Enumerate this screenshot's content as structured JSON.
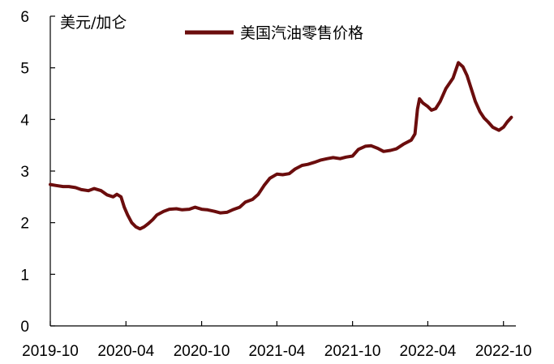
{
  "chart_data": {
    "type": "line",
    "unit_label": "美元/加仑",
    "ylim": [
      0,
      6
    ],
    "y_ticks": [
      "0",
      "1",
      "2",
      "3",
      "4",
      "5",
      "6"
    ],
    "x_ticks": [
      "2019-10",
      "2020-04",
      "2020-10",
      "2021-04",
      "2021-10",
      "2022-04",
      "2022-10"
    ],
    "x_start": "2019-10-01",
    "x_end": "2022-10-31",
    "legend_position": "top-center",
    "grid": false,
    "colors": {
      "series": "#6b0d0d",
      "axis": "#000000"
    },
    "series": [
      {
        "name": "美国汽油零售价格",
        "points": [
          [
            "2019-10-01",
            2.74
          ],
          [
            "2019-10-15",
            2.72
          ],
          [
            "2019-11-01",
            2.7
          ],
          [
            "2019-11-15",
            2.7
          ],
          [
            "2019-12-01",
            2.68
          ],
          [
            "2019-12-15",
            2.64
          ],
          [
            "2020-01-01",
            2.62
          ],
          [
            "2020-01-15",
            2.66
          ],
          [
            "2020-02-01",
            2.62
          ],
          [
            "2020-02-15",
            2.54
          ],
          [
            "2020-03-01",
            2.5
          ],
          [
            "2020-03-10",
            2.55
          ],
          [
            "2020-03-20",
            2.5
          ],
          [
            "2020-03-28",
            2.3
          ],
          [
            "2020-04-05",
            2.15
          ],
          [
            "2020-04-15",
            2.0
          ],
          [
            "2020-04-25",
            1.92
          ],
          [
            "2020-05-05",
            1.88
          ],
          [
            "2020-05-15",
            1.92
          ],
          [
            "2020-05-25",
            1.98
          ],
          [
            "2020-06-05",
            2.06
          ],
          [
            "2020-06-15",
            2.15
          ],
          [
            "2020-07-01",
            2.22
          ],
          [
            "2020-07-15",
            2.26
          ],
          [
            "2020-08-01",
            2.27
          ],
          [
            "2020-08-15",
            2.25
          ],
          [
            "2020-09-01",
            2.26
          ],
          [
            "2020-09-15",
            2.3
          ],
          [
            "2020-10-01",
            2.26
          ],
          [
            "2020-10-15",
            2.25
          ],
          [
            "2020-11-01",
            2.22
          ],
          [
            "2020-11-15",
            2.19
          ],
          [
            "2020-12-01",
            2.2
          ],
          [
            "2020-12-15",
            2.25
          ],
          [
            "2021-01-01",
            2.3
          ],
          [
            "2021-01-15",
            2.4
          ],
          [
            "2021-02-01",
            2.45
          ],
          [
            "2021-02-15",
            2.55
          ],
          [
            "2021-03-01",
            2.72
          ],
          [
            "2021-03-15",
            2.86
          ],
          [
            "2021-04-01",
            2.94
          ],
          [
            "2021-04-15",
            2.93
          ],
          [
            "2021-05-01",
            2.95
          ],
          [
            "2021-05-15",
            3.04
          ],
          [
            "2021-06-01",
            3.11
          ],
          [
            "2021-06-15",
            3.13
          ],
          [
            "2021-07-01",
            3.17
          ],
          [
            "2021-07-15",
            3.21
          ],
          [
            "2021-08-01",
            3.24
          ],
          [
            "2021-08-15",
            3.26
          ],
          [
            "2021-09-01",
            3.24
          ],
          [
            "2021-09-15",
            3.27
          ],
          [
            "2021-10-01",
            3.29
          ],
          [
            "2021-10-15",
            3.42
          ],
          [
            "2021-11-01",
            3.48
          ],
          [
            "2021-11-15",
            3.49
          ],
          [
            "2021-12-01",
            3.44
          ],
          [
            "2021-12-15",
            3.38
          ],
          [
            "2022-01-01",
            3.4
          ],
          [
            "2022-01-15",
            3.43
          ],
          [
            "2022-02-01",
            3.52
          ],
          [
            "2022-02-20",
            3.6
          ],
          [
            "2022-03-01",
            3.72
          ],
          [
            "2022-03-07",
            4.2
          ],
          [
            "2022-03-12",
            4.4
          ],
          [
            "2022-03-20",
            4.32
          ],
          [
            "2022-04-01",
            4.25
          ],
          [
            "2022-04-10",
            4.18
          ],
          [
            "2022-04-20",
            4.21
          ],
          [
            "2022-05-01",
            4.35
          ],
          [
            "2022-05-15",
            4.6
          ],
          [
            "2022-06-01",
            4.8
          ],
          [
            "2022-06-14",
            5.1
          ],
          [
            "2022-06-25",
            5.02
          ],
          [
            "2022-07-05",
            4.85
          ],
          [
            "2022-07-15",
            4.6
          ],
          [
            "2022-07-25",
            4.35
          ],
          [
            "2022-08-05",
            4.15
          ],
          [
            "2022-08-15",
            4.03
          ],
          [
            "2022-08-25",
            3.95
          ],
          [
            "2022-09-05",
            3.85
          ],
          [
            "2022-09-20",
            3.79
          ],
          [
            "2022-10-01",
            3.85
          ],
          [
            "2022-10-10",
            3.95
          ],
          [
            "2022-10-20",
            4.04
          ]
        ]
      }
    ]
  }
}
